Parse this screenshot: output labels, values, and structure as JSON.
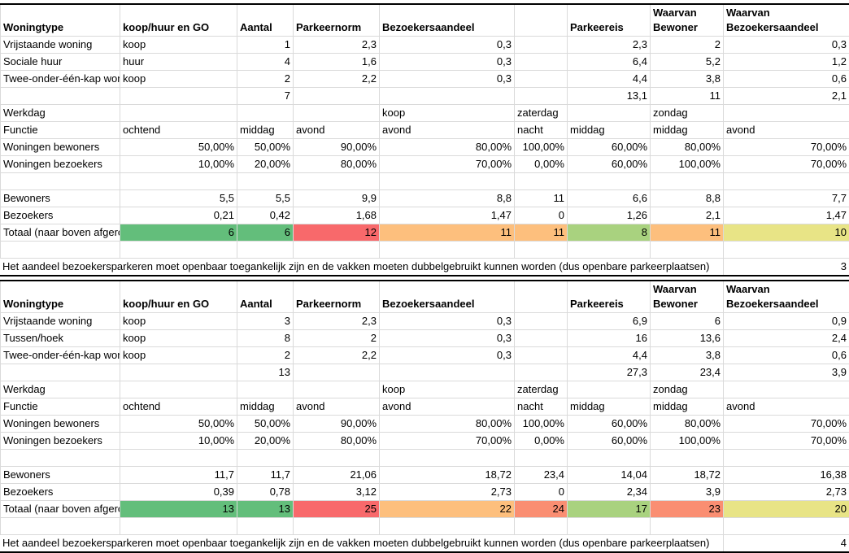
{
  "tables": [
    {
      "header": [
        "Woningtype",
        "koop/huur en GO",
        "Aantal",
        "Parkeernorm",
        "Bezoekersaandeel",
        "",
        "Parkeereis",
        "Waarvan Bewoner",
        "Waarvan Bezoekersaandeel"
      ],
      "header_top": [
        "",
        "",
        "",
        "",
        "",
        "",
        "",
        "Waarvan",
        "Waarvan"
      ],
      "header_bottom": [
        "Woningtype",
        "koop/huur en GO",
        "Aantal",
        "Parkeernorm",
        "Bezoekersaandeel",
        "",
        "Parkeereis",
        "Bewoner",
        "Bezoekersaandeel"
      ],
      "rows": [
        [
          "Vrijstaande woning",
          "koop",
          "1",
          "2,3",
          "0,3",
          "",
          "2,3",
          "2",
          "0,3"
        ],
        [
          "Sociale huur",
          "huur",
          "4",
          "1,6",
          "0,3",
          "",
          "6,4",
          "5,2",
          "1,2"
        ],
        [
          "Twee-onder-één-kap woning",
          "koop",
          "2",
          "2,2",
          "0,3",
          "",
          "4,4",
          "3,8",
          "0,6"
        ],
        [
          "",
          "",
          "7",
          "",
          "",
          "",
          "13,1",
          "11",
          "2,1"
        ],
        [
          "Werkdag",
          "",
          "",
          "",
          "koop",
          "zaterdag",
          "",
          "zondag",
          ""
        ],
        [
          "Functie",
          "ochtend",
          "middag",
          "avond",
          "avond",
          "nacht",
          "middag",
          "middag",
          "avond"
        ],
        [
          "Woningen bewoners",
          "50,00%",
          "50,00%",
          "90,00%",
          "80,00%",
          "100,00%",
          "60,00%",
          "80,00%",
          "70,00%"
        ],
        [
          "Woningen bezoekers",
          "10,00%",
          "20,00%",
          "80,00%",
          "70,00%",
          "0,00%",
          "60,00%",
          "100,00%",
          "70,00%"
        ],
        [
          "",
          "",
          "",
          "",
          "",
          "",
          "",
          "",
          ""
        ],
        [
          "Bewoners",
          "5,5",
          "5,5",
          "9,9",
          "8,8",
          "11",
          "6,6",
          "8,8",
          "7,7"
        ],
        [
          "Bezoekers",
          "0,21",
          "0,42",
          "1,68",
          "1,47",
          "0",
          "1,26",
          "2,1",
          "1,47"
        ]
      ],
      "totaal": {
        "label": "Totaal (naar boven afgerond)",
        "values": [
          "6",
          "6",
          "12",
          "11",
          "11",
          "8",
          "11",
          "10"
        ],
        "colors": [
          "g-green",
          "g-green",
          "g-red",
          "g-orange",
          "g-orange",
          "g-lgreen",
          "g-orange",
          "g-yellow"
        ]
      },
      "note": "Het aandeel bezoekersparkeren moet openbaar toegankelijk zijn en de vakken moeten dubbelgebruikt kunnen worden (dus openbare parkeerplaatsen)",
      "note_value": "3"
    },
    {
      "header_top": [
        "",
        "",
        "",
        "",
        "",
        "",
        "",
        "Waarvan",
        "Waarvan"
      ],
      "header_bottom": [
        "Woningtype",
        "koop/huur en GO",
        "Aantal",
        "Parkeernorm",
        "Bezoekersaandeel",
        "",
        "Parkeereis",
        "Bewoner",
        "Bezoekersaandeel"
      ],
      "rows": [
        [
          "Vrijstaande woning",
          "koop",
          "3",
          "2,3",
          "0,3",
          "",
          "6,9",
          "6",
          "0,9"
        ],
        [
          "Tussen/hoek",
          "koop",
          "8",
          "2",
          "0,3",
          "",
          "16",
          "13,6",
          "2,4"
        ],
        [
          "Twee-onder-één-kap woning",
          "koop",
          "2",
          "2,2",
          "0,3",
          "",
          "4,4",
          "3,8",
          "0,6"
        ],
        [
          "",
          "",
          "13",
          "",
          "",
          "",
          "27,3",
          "23,4",
          "3,9"
        ],
        [
          "Werkdag",
          "",
          "",
          "",
          "koop",
          "zaterdag",
          "",
          "zondag",
          ""
        ],
        [
          "Functie",
          "ochtend",
          "middag",
          "avond",
          "avond",
          "nacht",
          "middag",
          "middag",
          "avond"
        ],
        [
          "Woningen bewoners",
          "50,00%",
          "50,00%",
          "90,00%",
          "80,00%",
          "100,00%",
          "60,00%",
          "80,00%",
          "70,00%"
        ],
        [
          "Woningen bezoekers",
          "10,00%",
          "20,00%",
          "80,00%",
          "70,00%",
          "0,00%",
          "60,00%",
          "100,00%",
          "70,00%"
        ],
        [
          "",
          "",
          "",
          "",
          "",
          "",
          "",
          "",
          ""
        ],
        [
          "Bewoners",
          "11,7",
          "11,7",
          "21,06",
          "18,72",
          "23,4",
          "14,04",
          "18,72",
          "16,38"
        ],
        [
          "Bezoekers",
          "0,39",
          "0,78",
          "3,12",
          "2,73",
          "0",
          "2,34",
          "3,9",
          "2,73"
        ]
      ],
      "totaal": {
        "label": "Totaal (naar boven afgerond)",
        "values": [
          "13",
          "13",
          "25",
          "22",
          "24",
          "17",
          "23",
          "20"
        ],
        "colors": [
          "g-green",
          "g-green",
          "g-red",
          "g-orange",
          "g-orange2",
          "g-lgreen",
          "g-orange2",
          "g-yellow"
        ]
      },
      "note": "Het aandeel bezoekersparkeren moet openbaar toegankelijk zijn en de vakken moeten dubbelgebruikt kunnen worden (dus openbare parkeerplaatsen)",
      "note_value": "4"
    }
  ]
}
